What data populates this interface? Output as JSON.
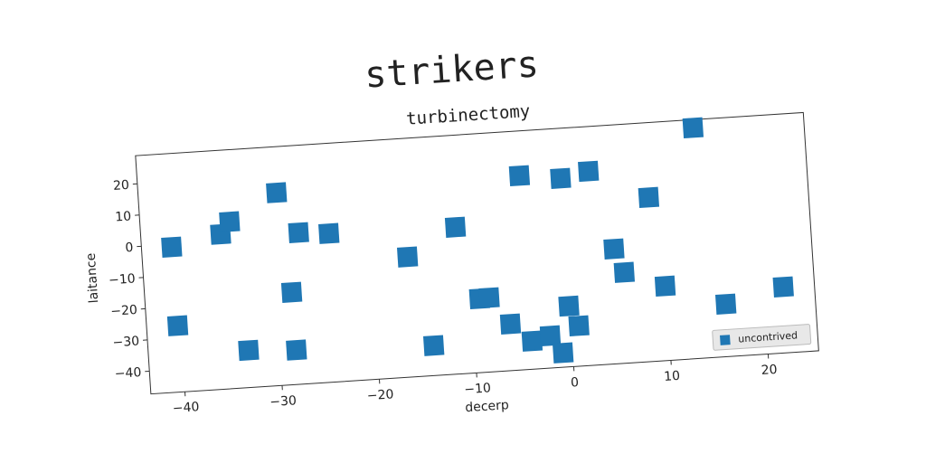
{
  "chart_data": {
    "type": "scatter",
    "title": "strikers",
    "subtitle": "turbinectomy",
    "x_label": "decerp",
    "y_label": "laitance",
    "xlim": [
      -43.5,
      25.2
    ],
    "ylim": [
      -47.3,
      29
    ],
    "xticks": [
      {
        "value": -40,
        "label": "−40"
      },
      {
        "value": -30,
        "label": "−30"
      },
      {
        "value": -20,
        "label": "−20"
      },
      {
        "value": -10,
        "label": "−10"
      },
      0,
      10,
      20
    ],
    "yticks": [
      {
        "value": -40,
        "label": "−40"
      },
      {
        "value": -30,
        "label": "−30"
      },
      {
        "value": -20,
        "label": "−20"
      },
      {
        "value": -10,
        "label": "−10"
      },
      0,
      10,
      20
    ],
    "legend_position": "lower right",
    "series": [
      {
        "name": "uncontrived",
        "color": "#1f77b4",
        "x": [
          -40.4,
          -40.3,
          -35.3,
          -34.3,
          -33.2,
          -29.3,
          -28.4,
          -28.3,
          -27.3,
          -24.2,
          -16.3,
          -14.2,
          -11.2,
          -9.2,
          -8.2,
          -6.2,
          -4.3,
          -4.1,
          -2.2,
          -0.1,
          -1.0,
          -0.1,
          0.8,
          2.8,
          4.9,
          5.8,
          8.8,
          9.9,
          13.8,
          16.0,
          22.0
        ],
        "values": [
          -0.9,
          -26.1,
          2.2,
          6.0,
          -35.4,
          14.3,
          -17.8,
          -36.3,
          1.1,
          0.2,
          -8.9,
          -37.7,
          -0.4,
          -23.7,
          -23.6,
          -32.4,
          14.7,
          -38.3,
          -37.0,
          13.0,
          -42.7,
          -27.9,
          -34.4,
          14.7,
          -10.6,
          -18.3,
          5.1,
          -23.5,
          26.4,
          -30.5,
          -26.2
        ]
      }
    ]
  }
}
